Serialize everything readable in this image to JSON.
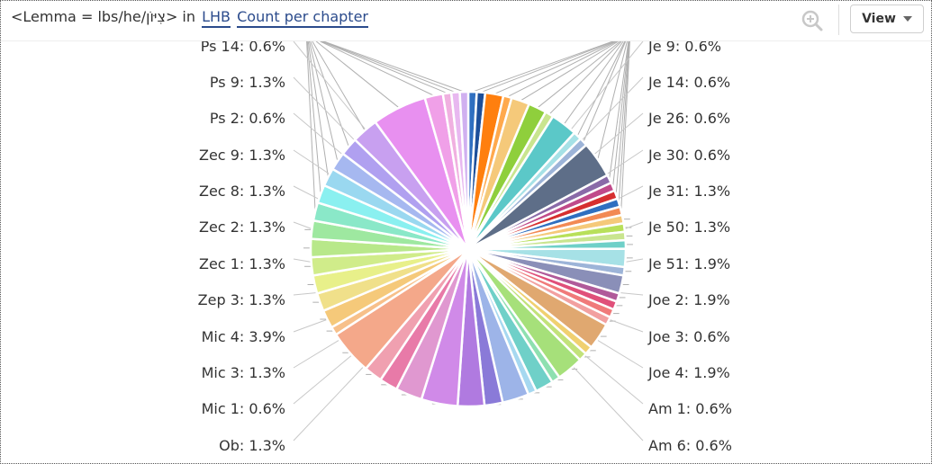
{
  "header": {
    "query_prefix": "<Lemma = lbs/he/צִיּוֹן> in",
    "source_link": "LHB",
    "mode_link": "Count per chapter",
    "view_label": "View",
    "zoom_icon": "zoom-in-icon"
  },
  "chart_data": {
    "type": "pie",
    "title": "",
    "total_label_unit": "%",
    "left_labels": [
      {
        "name": "Ps 14",
        "value": 0.6
      },
      {
        "name": "Ps 9",
        "value": 1.3
      },
      {
        "name": "Ps 2",
        "value": 0.6
      },
      {
        "name": "Zec 9",
        "value": 1.3
      },
      {
        "name": "Zec 8",
        "value": 1.3
      },
      {
        "name": "Zec 2",
        "value": 1.3
      },
      {
        "name": "Zec 1",
        "value": 1.3
      },
      {
        "name": "Zep 3",
        "value": 1.3
      },
      {
        "name": "Mic 4",
        "value": 3.9
      },
      {
        "name": "Mic 3",
        "value": 1.3
      },
      {
        "name": "Mic 1",
        "value": 0.6
      },
      {
        "name": "Ob",
        "value": 1.3
      }
    ],
    "right_labels": [
      {
        "name": "Je 9",
        "value": 0.6
      },
      {
        "name": "Je 14",
        "value": 0.6
      },
      {
        "name": "Je 26",
        "value": 0.6
      },
      {
        "name": "Je 30",
        "value": 0.6
      },
      {
        "name": "Je 31",
        "value": 1.3
      },
      {
        "name": "Je 50",
        "value": 1.3
      },
      {
        "name": "Je 51",
        "value": 1.9
      },
      {
        "name": "Joe 2",
        "value": 1.9
      },
      {
        "name": "Joe 3",
        "value": 0.6
      },
      {
        "name": "Joe 4",
        "value": 1.9
      },
      {
        "name": "Am 1",
        "value": 0.6
      },
      {
        "name": "Am 6",
        "value": 0.6
      }
    ],
    "slices": [
      {
        "v": 0.6,
        "c": "#2f6fc0"
      },
      {
        "v": 0.6,
        "c": "#1d4f9a"
      },
      {
        "v": 1.3,
        "c": "#ff7f0e"
      },
      {
        "v": 0.6,
        "c": "#ffa94d"
      },
      {
        "v": 1.3,
        "c": "#f5c97a"
      },
      {
        "v": 1.3,
        "c": "#8fcf3c"
      },
      {
        "v": 0.6,
        "c": "#c9e58f"
      },
      {
        "v": 1.9,
        "c": "#5bc8c8"
      },
      {
        "v": 0.6,
        "c": "#a6e1e6"
      },
      {
        "v": 0.6,
        "c": "#9db4d8"
      },
      {
        "v": 2.6,
        "c": "#5e6e88"
      },
      {
        "v": 0.6,
        "c": "#8a6aa8"
      },
      {
        "v": 0.6,
        "c": "#c04a8a"
      },
      {
        "v": 0.6,
        "c": "#d62f2f"
      },
      {
        "v": 0.6,
        "c": "#2f6fc0"
      },
      {
        "v": 0.6,
        "c": "#f28a54"
      },
      {
        "v": 0.6,
        "c": "#f5c97a"
      },
      {
        "v": 0.6,
        "c": "#b8e05a"
      },
      {
        "v": 0.6,
        "c": "#c9e58f"
      },
      {
        "v": 0.6,
        "c": "#6fd0c8"
      },
      {
        "v": 1.3,
        "c": "#a6e1e6"
      },
      {
        "v": 0.6,
        "c": "#9db4d8"
      },
      {
        "v": 1.3,
        "c": "#8a8fb8"
      },
      {
        "v": 0.6,
        "c": "#b05a9a"
      },
      {
        "v": 0.6,
        "c": "#e0507a"
      },
      {
        "v": 0.6,
        "c": "#f07a7a"
      },
      {
        "v": 0.6,
        "c": "#f2a0a0"
      },
      {
        "v": 1.9,
        "c": "#e0a870"
      },
      {
        "v": 0.6,
        "c": "#f0d070"
      },
      {
        "v": 0.6,
        "c": "#c2e27a"
      },
      {
        "v": 1.9,
        "c": "#a6e07a"
      },
      {
        "v": 0.6,
        "c": "#8ee0b0"
      },
      {
        "v": 1.3,
        "c": "#6fd0c8"
      },
      {
        "v": 0.6,
        "c": "#a6d8f0"
      },
      {
        "v": 1.9,
        "c": "#9db4e8"
      },
      {
        "v": 1.3,
        "c": "#8a7ad8"
      },
      {
        "v": 1.9,
        "c": "#b07ae0"
      },
      {
        "v": 2.6,
        "c": "#d08ae8"
      },
      {
        "v": 1.9,
        "c": "#e098d0"
      },
      {
        "v": 1.3,
        "c": "#e87aa8"
      },
      {
        "v": 1.3,
        "c": "#f0a0b0"
      },
      {
        "v": 3.2,
        "c": "#f4a88a"
      },
      {
        "v": 0.6,
        "c": "#f7c08a"
      },
      {
        "v": 1.3,
        "c": "#f5c97a"
      },
      {
        "v": 1.3,
        "c": "#f0e08a"
      },
      {
        "v": 1.3,
        "c": "#e8f08a"
      },
      {
        "v": 1.3,
        "c": "#d0ec8a"
      },
      {
        "v": 1.3,
        "c": "#b8e88a"
      },
      {
        "v": 1.3,
        "c": "#9ee8a0"
      },
      {
        "v": 1.3,
        "c": "#8ae8c8"
      },
      {
        "v": 1.3,
        "c": "#8af0f0"
      },
      {
        "v": 1.3,
        "c": "#9ad8f0"
      },
      {
        "v": 1.3,
        "c": "#a6b8f0"
      },
      {
        "v": 1.3,
        "c": "#b0a0f0"
      },
      {
        "v": 1.9,
        "c": "#c8a0f0"
      },
      {
        "v": 3.9,
        "c": "#e890f0"
      },
      {
        "v": 1.3,
        "c": "#f0a0e8"
      },
      {
        "v": 0.6,
        "c": "#f0b0e0"
      },
      {
        "v": 0.6,
        "c": "#e8b8f0"
      },
      {
        "v": 0.6,
        "c": "#d0b0f0"
      }
    ]
  }
}
